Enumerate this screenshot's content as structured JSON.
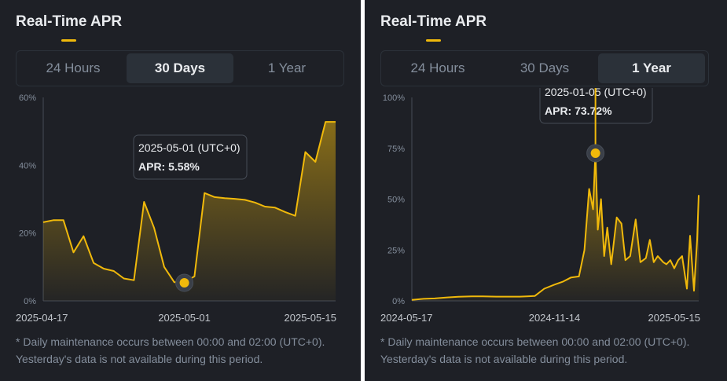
{
  "panels": [
    {
      "title": "Real-Time APR",
      "tabs": [
        {
          "label": "24 Hours",
          "active": false
        },
        {
          "label": "30 Days",
          "active": true
        },
        {
          "label": "1 Year",
          "active": false
        }
      ],
      "footnote_line1": "* Daily maintenance occurs between 00:00 and 02:00 (UTC+0).",
      "footnote_line2": "Yesterday's data is not available during this period."
    },
    {
      "title": "Real-Time APR",
      "tabs": [
        {
          "label": "24 Hours",
          "active": false
        },
        {
          "label": "30 Days",
          "active": false
        },
        {
          "label": "1 Year",
          "active": true
        }
      ],
      "footnote_line1": "* Daily maintenance occurs between 00:00 and 02:00 (UTC+0).",
      "footnote_line2": "Yesterday's data is not available during this period."
    }
  ],
  "colors": {
    "accent": "#f0b90b",
    "background": "#1e2026",
    "text_primary": "#eaecef",
    "text_secondary": "#848e9c"
  },
  "chart_data": [
    {
      "type": "area",
      "x_type": "date",
      "x": [
        "2025-04-17",
        "2025-04-18",
        "2025-04-19",
        "2025-04-20",
        "2025-04-21",
        "2025-04-22",
        "2025-04-23",
        "2025-04-24",
        "2025-04-25",
        "2025-04-26",
        "2025-04-27",
        "2025-04-28",
        "2025-04-29",
        "2025-04-30",
        "2025-05-01",
        "2025-05-02",
        "2025-05-03",
        "2025-05-04",
        "2025-05-05",
        "2025-05-06",
        "2025-05-07",
        "2025-05-08",
        "2025-05-09",
        "2025-05-10",
        "2025-05-11",
        "2025-05-12",
        "2025-05-13",
        "2025-05-14",
        "2025-05-15",
        "2025-05-16"
      ],
      "series": [
        {
          "values": [
            23.2,
            23.8,
            23.8,
            14.3,
            19.1,
            11.2,
            9.5,
            8.8,
            6.6,
            6.1,
            29.2,
            21.5,
            10.0,
            5.5,
            5.58,
            7.2,
            31.8,
            30.6,
            30.3,
            30.1,
            29.8,
            29.0,
            27.8,
            27.5,
            26.2,
            25.1,
            43.9,
            41.0,
            52.8,
            52.8
          ]
        }
      ],
      "ylim": [
        0,
        60
      ],
      "yticks": [
        "0%",
        "20%",
        "40%",
        "60%"
      ],
      "ytick_values": [
        0,
        20,
        40,
        60
      ],
      "xtick_labels": [
        "2025-04-17",
        "2025-05-01",
        "2025-05-15"
      ],
      "grid": false,
      "tooltip": {
        "x": "2025-05-01",
        "value": 5.58,
        "date_label": "2025-05-01 (UTC+0)",
        "value_label": "APR: 5.58%"
      }
    },
    {
      "type": "area",
      "x_type": "date",
      "x": [
        "2024-05-17",
        "2024-06-01",
        "2024-06-15",
        "2024-07-01",
        "2024-07-15",
        "2024-08-01",
        "2024-08-15",
        "2024-09-01",
        "2024-09-15",
        "2024-10-01",
        "2024-10-10",
        "2024-10-20",
        "2024-11-01",
        "2024-11-14",
        "2024-11-25",
        "2024-12-05",
        "2024-12-15",
        "2024-12-22",
        "2024-12-28",
        "2025-01-02",
        "2025-01-05",
        "2025-01-08",
        "2025-01-12",
        "2025-01-16",
        "2025-01-20",
        "2025-01-25",
        "2025-02-01",
        "2025-02-07",
        "2025-02-12",
        "2025-02-18",
        "2025-02-25",
        "2025-03-03",
        "2025-03-10",
        "2025-03-15",
        "2025-03-20",
        "2025-03-25",
        "2025-04-01",
        "2025-04-05",
        "2025-04-10",
        "2025-04-15",
        "2025-04-20",
        "2025-04-25",
        "2025-05-01",
        "2025-05-05",
        "2025-05-10",
        "2025-05-14",
        "2025-05-16"
      ],
      "series": [
        {
          "values": [
            0.5,
            1.0,
            1.2,
            1.7,
            2.0,
            2.2,
            2.2,
            2.1,
            2.1,
            2.1,
            2.2,
            2.4,
            6.0,
            8.0,
            9.5,
            11.5,
            12.0,
            25.0,
            55.0,
            45.0,
            73.72,
            35.0,
            50.0,
            22.0,
            36.0,
            18.0,
            41.0,
            38.0,
            20.0,
            22.0,
            40.0,
            19.0,
            21.0,
            30.0,
            19.0,
            22.0,
            19.0,
            18.0,
            20.0,
            16.0,
            20.0,
            22.0,
            6.0,
            32.0,
            5.0,
            30.0,
            52.0
          ]
        }
      ],
      "ylim": [
        0,
        100
      ],
      "yticks": [
        "0%",
        "25%",
        "50%",
        "75%",
        "100%"
      ],
      "ytick_values": [
        0,
        25,
        50,
        75,
        100
      ],
      "xtick_labels": [
        "2024-05-17",
        "2024-11-14",
        "2025-05-15"
      ],
      "grid": false,
      "tooltip": {
        "x": "2025-01-05",
        "value": 73.72,
        "date_label": "2025-01-05 (UTC+0)",
        "value_label": "APR: 73.72%"
      }
    }
  ]
}
